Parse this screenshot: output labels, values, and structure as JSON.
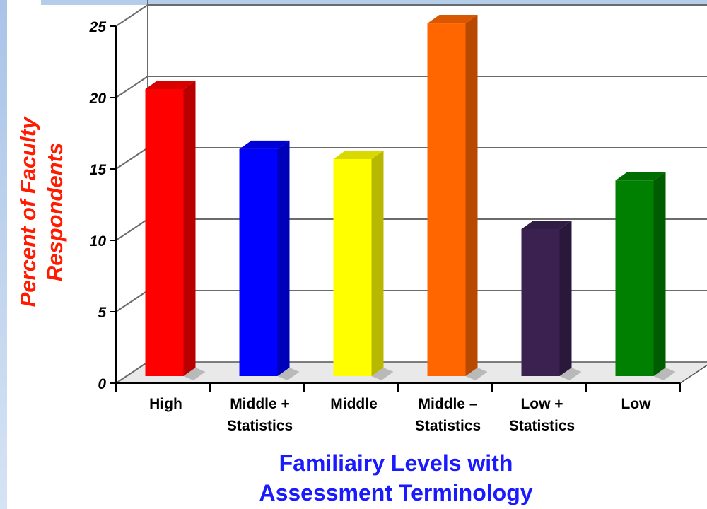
{
  "chart_data": {
    "type": "bar",
    "categories": [
      [
        "High"
      ],
      [
        "Middle +",
        "Statistics"
      ],
      [
        "Middle"
      ],
      [
        "Middle –",
        "Statistics"
      ],
      [
        "Low +",
        "Statistics"
      ],
      [
        "Low"
      ]
    ],
    "values": [
      20.1,
      15.9,
      15.2,
      24.7,
      10.3,
      13.7
    ],
    "colors": [
      "#ff0000",
      "#0000ff",
      "#ffff00",
      "#ff6600",
      "#3a2150",
      "#008000"
    ],
    "ylabel": [
      "Percent of Faculty",
      "Respondents"
    ],
    "xlabel": [
      "Familiairy Levels with",
      "Assessment Terminology"
    ],
    "ylim": [
      0,
      25
    ],
    "yticks": [
      "0",
      "5",
      "10",
      "15",
      "20",
      "25"
    ],
    "grid": true,
    "legend": "none",
    "style": "3d"
  }
}
